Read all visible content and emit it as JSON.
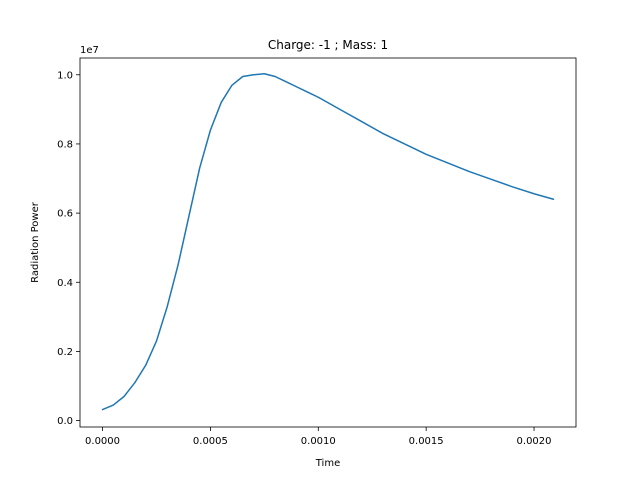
{
  "chart_data": {
    "type": "line",
    "title": "Charge: -1 ; Mass: 1",
    "xlabel": "Time",
    "ylabel": "Radiation Power",
    "y_scale_label": "1e7",
    "xlim": [
      -0.0001045,
      0.0021945
    ],
    "ylim": [
      -0.0185,
      1.0485
    ],
    "xticks": [
      0.0,
      0.0005,
      0.001,
      0.0015,
      0.002
    ],
    "xtick_labels": [
      "0.0000",
      "0.0005",
      "0.0010",
      "0.0015",
      "0.0020"
    ],
    "yticks": [
      0.0,
      0.2,
      0.4,
      0.6,
      0.8,
      1.0
    ],
    "ytick_labels": [
      "0.0",
      "0.2",
      "0.4",
      "0.6",
      "0.8",
      "1.0"
    ],
    "grid": false,
    "series": [
      {
        "color": "#1f77b4",
        "x": [
          0.0,
          5e-05,
          0.0001,
          0.00015,
          0.0002,
          0.00025,
          0.0003,
          0.00035,
          0.0004,
          0.00045,
          0.0005,
          0.00055,
          0.0006,
          0.00065,
          0.0007,
          0.00075,
          0.0008,
          0.00085,
          0.0009,
          0.00095,
          0.001,
          0.0011,
          0.0012,
          0.0013,
          0.0014,
          0.0015,
          0.0016,
          0.0017,
          0.0018,
          0.0019,
          0.002,
          0.00209
        ],
        "y": [
          0.032,
          0.045,
          0.07,
          0.11,
          0.16,
          0.23,
          0.33,
          0.45,
          0.59,
          0.73,
          0.84,
          0.92,
          0.97,
          0.995,
          1.0,
          1.003,
          0.995,
          0.98,
          0.965,
          0.95,
          0.935,
          0.9,
          0.865,
          0.83,
          0.8,
          0.77,
          0.745,
          0.72,
          0.698,
          0.676,
          0.656,
          0.64
        ]
      }
    ]
  }
}
